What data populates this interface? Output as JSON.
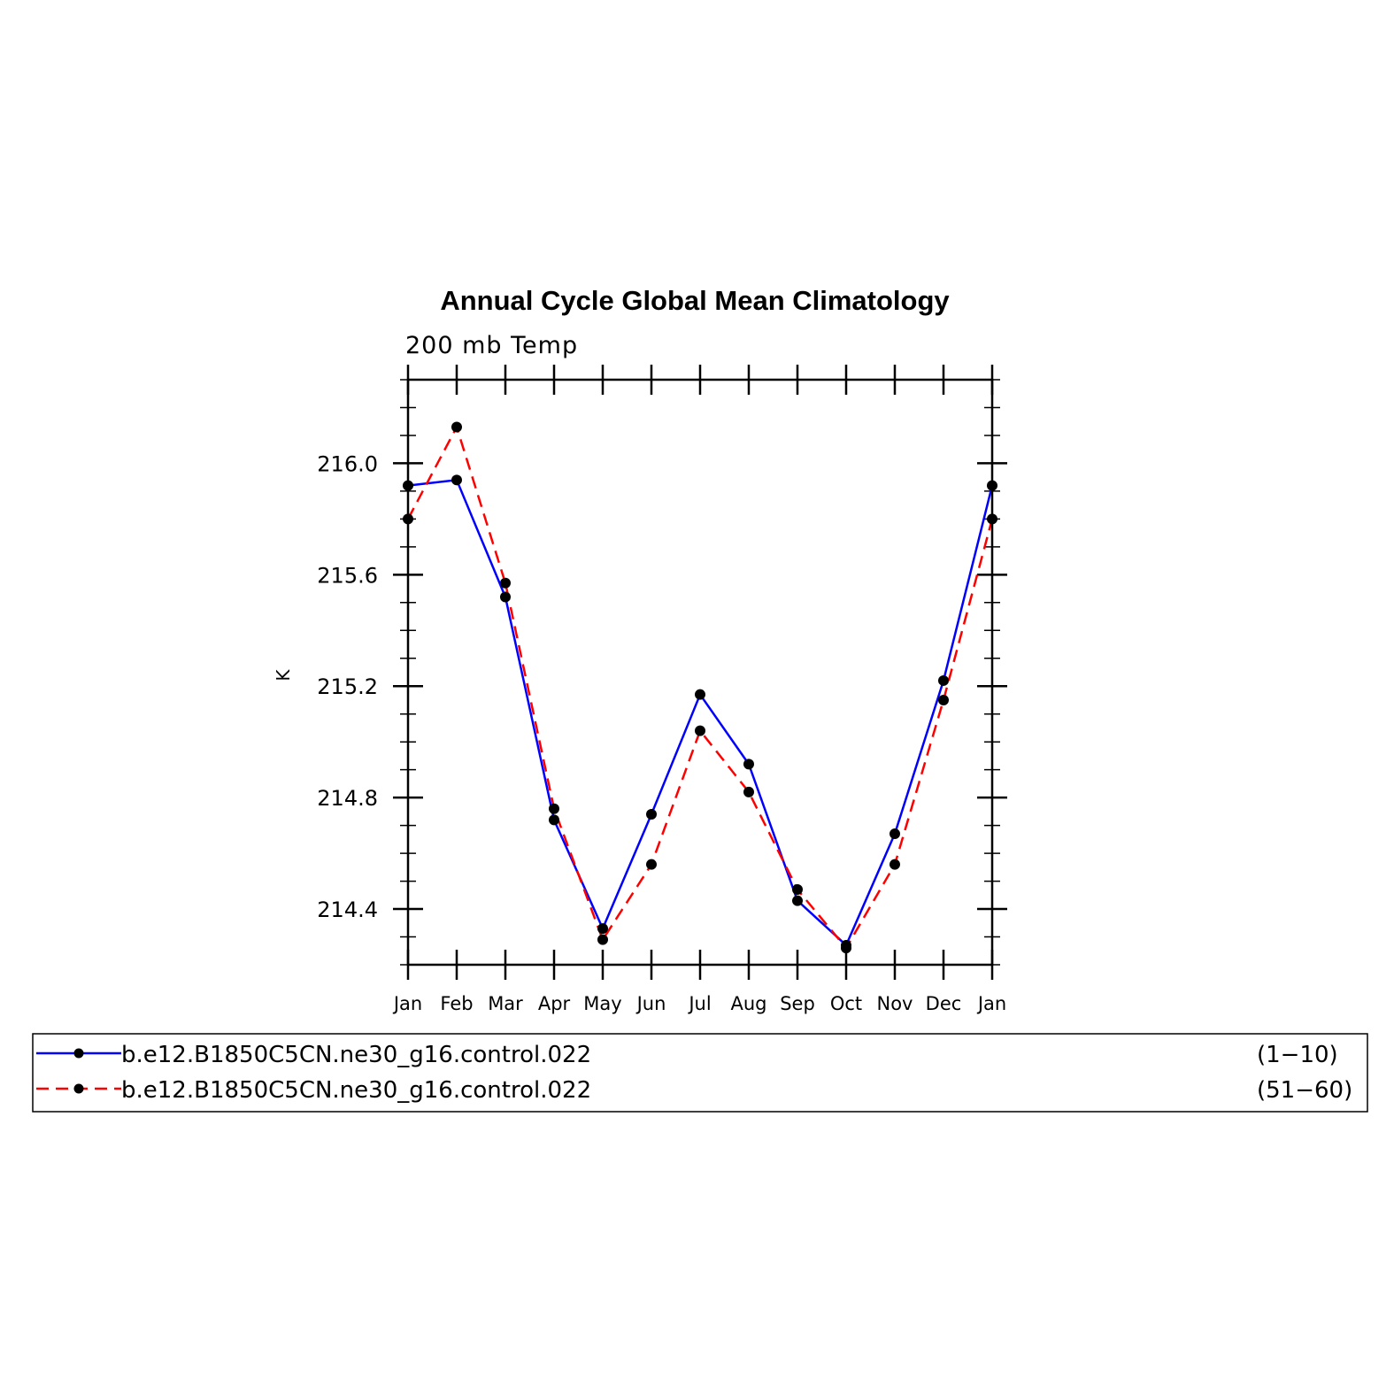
{
  "chart_data": {
    "type": "line",
    "title": "Annual Cycle Global Mean Climatology",
    "subtitle": "200 mb Temp",
    "ylabel": "K",
    "xlabel": "",
    "categories": [
      "Jan",
      "Feb",
      "Mar",
      "Apr",
      "May",
      "Jun",
      "Jul",
      "Aug",
      "Sep",
      "Oct",
      "Nov",
      "Dec",
      "Jan"
    ],
    "ylim": [
      214.2,
      216.3
    ],
    "yticks": [
      214.4,
      214.8,
      215.2,
      215.6,
      216.0
    ],
    "ytick_labels": [
      "214.4",
      "214.8",
      "215.2",
      "215.6",
      "216.0"
    ],
    "grid": false,
    "legend_position": "bottom",
    "series": [
      {
        "name": "b.e12.B1850C5CN.ne30_g16.control.022",
        "period": "(1−10)",
        "color": "#0000ff",
        "line_style": "solid",
        "marker": "filled-circle",
        "values": [
          215.92,
          215.94,
          215.52,
          214.72,
          214.33,
          214.74,
          215.17,
          214.92,
          214.43,
          214.27,
          214.67,
          215.22,
          215.92
        ]
      },
      {
        "name": "b.e12.B1850C5CN.ne30_g16.control.022",
        "period": "(51−60)",
        "color": "#ff0000",
        "line_style": "dashed",
        "marker": "filled-circle",
        "values": [
          215.8,
          216.13,
          215.57,
          214.76,
          214.29,
          214.56,
          215.04,
          214.82,
          214.47,
          214.26,
          214.56,
          215.15,
          215.8
        ]
      }
    ]
  }
}
